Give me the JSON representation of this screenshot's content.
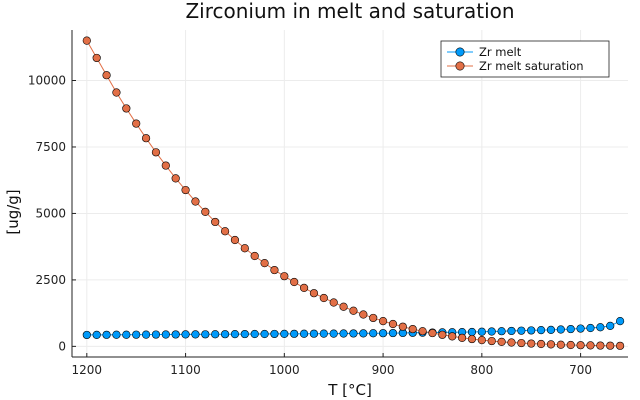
{
  "chart_data": {
    "type": "line",
    "title": "Zirconium in melt and saturation",
    "xlabel": "T [°C]",
    "ylabel": "[ug/g]",
    "xlim": [
      1215,
      652
    ],
    "ylim": [
      -400,
      11900
    ],
    "x_reversed": true,
    "grid": true,
    "legend_position": "top-right",
    "x_ticks": [
      1200,
      1100,
      1000,
      900,
      800,
      700
    ],
    "y_ticks": [
      0,
      2500,
      5000,
      7500,
      10000
    ],
    "x": [
      1200,
      1190,
      1180,
      1170,
      1160,
      1150,
      1140,
      1130,
      1120,
      1110,
      1100,
      1090,
      1080,
      1070,
      1060,
      1050,
      1040,
      1030,
      1020,
      1010,
      1000,
      990,
      980,
      970,
      960,
      950,
      940,
      930,
      920,
      910,
      900,
      890,
      880,
      870,
      860,
      850,
      840,
      830,
      820,
      810,
      800,
      790,
      780,
      770,
      760,
      750,
      740,
      730,
      720,
      710,
      700,
      690,
      680,
      670,
      660
    ],
    "series": [
      {
        "name": "Zr melt",
        "color": "#009AFA",
        "values": [
          430,
          432,
          434,
          436,
          438,
          440,
          442,
          444,
          446,
          448,
          450,
          452,
          454,
          456,
          458,
          460,
          462,
          464,
          466,
          468,
          470,
          472,
          474,
          476,
          478,
          480,
          483,
          486,
          489,
          492,
          495,
          500,
          505,
          510,
          515,
          520,
          525,
          530,
          535,
          540,
          550,
          560,
          570,
          580,
          590,
          600,
          610,
          620,
          635,
          650,
          670,
          690,
          720,
          770,
          950
        ]
      },
      {
        "name": "Zr melt saturation",
        "color": "#E26F46",
        "values": [
          11500,
          10850,
          10200,
          9550,
          8950,
          8380,
          7830,
          7300,
          6800,
          6320,
          5880,
          5450,
          5060,
          4680,
          4330,
          4000,
          3690,
          3400,
          3130,
          2870,
          2640,
          2420,
          2200,
          2000,
          1820,
          1650,
          1490,
          1340,
          1200,
          1070,
          950,
          840,
          740,
          650,
          570,
          500,
          435,
          375,
          320,
          275,
          235,
          200,
          170,
          145,
          125,
          105,
          90,
          75,
          62,
          52,
          44,
          36,
          30,
          25,
          20
        ]
      }
    ]
  }
}
